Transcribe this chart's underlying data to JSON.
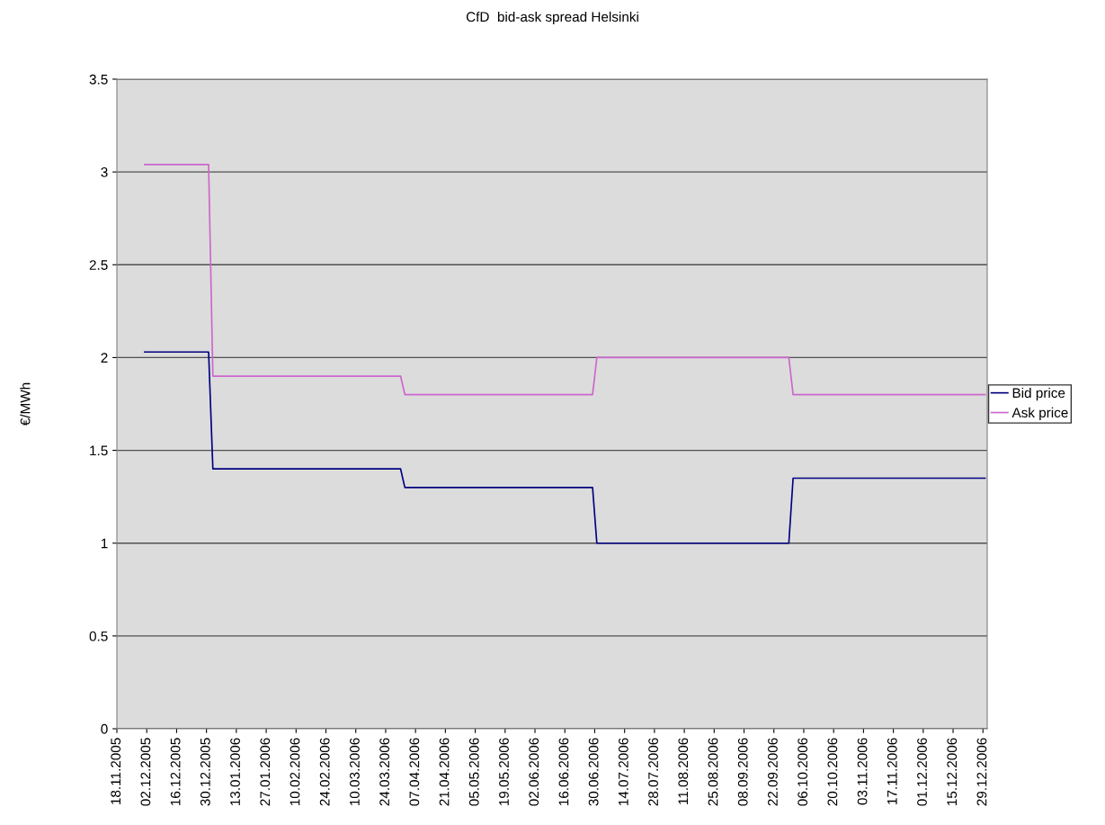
{
  "chart_data": {
    "type": "line",
    "title": "CfD  bid-ask spread Helsinki",
    "ylabel": "€/MWh",
    "series": [
      {
        "name": "Bid price",
        "color": "#000080",
        "x": [
          "2005-12-01",
          "2005-12-31",
          "2006-01-02",
          "2006-03-31",
          "2006-04-02",
          "2006-06-29",
          "2006-07-01",
          "2006-09-29",
          "2006-10-01",
          "2006-12-30"
        ],
        "values": [
          2.03,
          2.03,
          1.4,
          1.4,
          1.3,
          1.3,
          1.0,
          1.0,
          1.35,
          1.35
        ]
      },
      {
        "name": "Ask price",
        "color": "#cc66cc",
        "x": [
          "2005-12-01",
          "2005-12-31",
          "2006-01-02",
          "2006-03-31",
          "2006-04-02",
          "2006-06-29",
          "2006-07-01",
          "2006-09-29",
          "2006-10-01",
          "2006-12-30"
        ],
        "values": [
          3.04,
          3.04,
          1.9,
          1.9,
          1.8,
          1.8,
          2.0,
          2.0,
          1.8,
          1.8
        ]
      }
    ],
    "xlim": [
      "2005-11-18",
      "2006-12-31"
    ],
    "xticks": [
      {
        "value": "2005-11-18",
        "label": "18.11.2005"
      },
      {
        "value": "2005-12-02",
        "label": "02.12.2005"
      },
      {
        "value": "2005-12-16",
        "label": "16.12.2005"
      },
      {
        "value": "2005-12-30",
        "label": "30.12.2005"
      },
      {
        "value": "2006-01-13",
        "label": "13.01.2006"
      },
      {
        "value": "2006-01-27",
        "label": "27.01.2006"
      },
      {
        "value": "2006-02-10",
        "label": "10.02.2006"
      },
      {
        "value": "2006-02-24",
        "label": "24.02.2006"
      },
      {
        "value": "2006-03-10",
        "label": "10.03.2006"
      },
      {
        "value": "2006-03-24",
        "label": "24.03.2006"
      },
      {
        "value": "2006-04-07",
        "label": "07.04.2006"
      },
      {
        "value": "2006-04-21",
        "label": "21.04.2006"
      },
      {
        "value": "2006-05-05",
        "label": "05.05.2006"
      },
      {
        "value": "2006-05-19",
        "label": "19.05.2006"
      },
      {
        "value": "2006-06-02",
        "label": "02.06.2006"
      },
      {
        "value": "2006-06-16",
        "label": "16.06.2006"
      },
      {
        "value": "2006-06-30",
        "label": "30.06.2006"
      },
      {
        "value": "2006-07-14",
        "label": "14.07.2006"
      },
      {
        "value": "2006-07-28",
        "label": "28.07.2006"
      },
      {
        "value": "2006-08-11",
        "label": "11.08.2006"
      },
      {
        "value": "2006-08-25",
        "label": "25.08.2006"
      },
      {
        "value": "2006-09-08",
        "label": "08.09.2006"
      },
      {
        "value": "2006-09-22",
        "label": "22.09.2006"
      },
      {
        "value": "2006-10-06",
        "label": "06.10.2006"
      },
      {
        "value": "2006-10-20",
        "label": "20.10.2006"
      },
      {
        "value": "2006-11-03",
        "label": "03.11.2006"
      },
      {
        "value": "2006-11-17",
        "label": "17.11.2006"
      },
      {
        "value": "2006-12-01",
        "label": "01.12.2006"
      },
      {
        "value": "2006-12-15",
        "label": "15.12.2006"
      },
      {
        "value": "2006-12-29",
        "label": "29.12.2006"
      }
    ],
    "ylim": [
      0,
      3.5
    ],
    "yticks": [
      0,
      0.5,
      1,
      1.5,
      2,
      2.5,
      3,
      3.5
    ],
    "grid": "y",
    "legend": "right",
    "marker": "none",
    "line_style": "solid"
  }
}
